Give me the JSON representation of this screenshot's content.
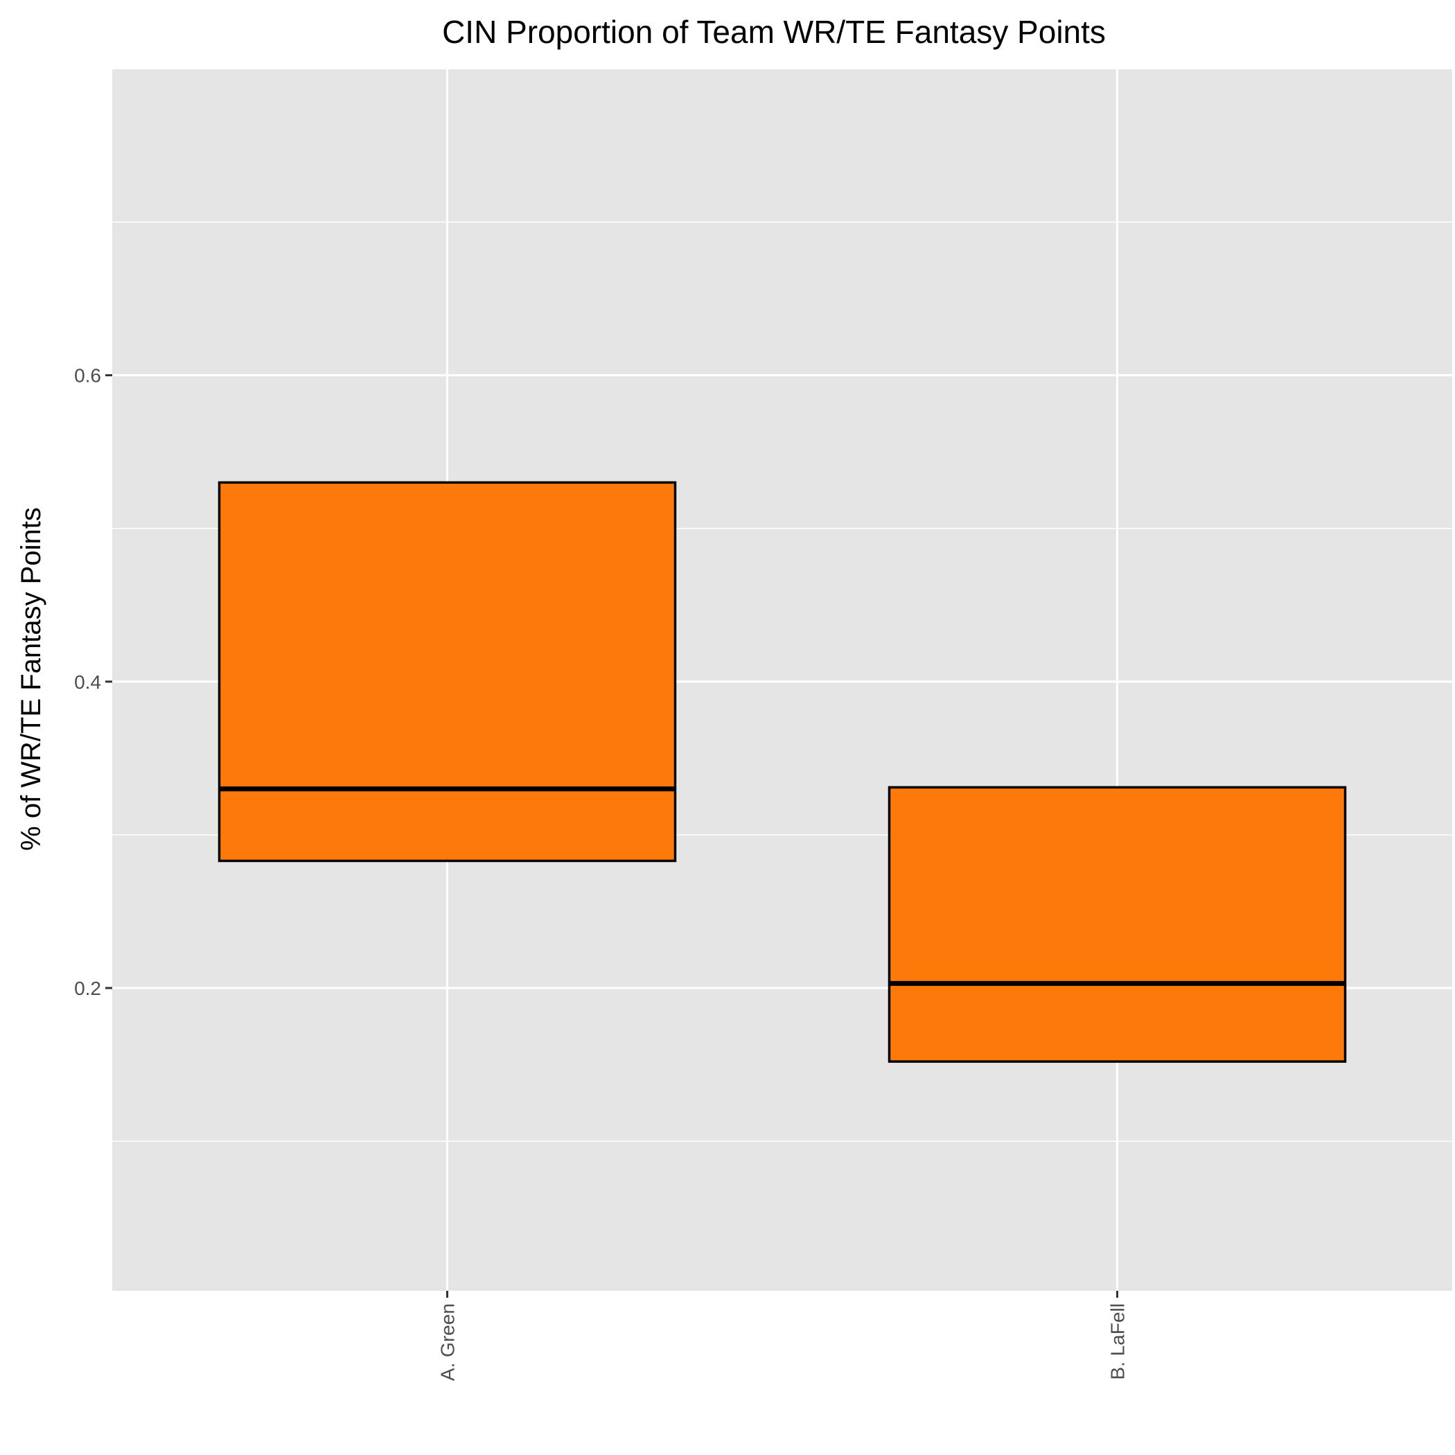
{
  "chart_data": {
    "type": "box",
    "title": "CIN Proportion of Team WR/TE Fantasy Points",
    "xlabel": "",
    "ylabel": "% of WR/TE Fantasy Points",
    "ylim": [
      0.0,
      0.8
    ],
    "yticks": [
      0.2,
      0.4,
      0.6
    ],
    "ytick_labels": [
      "0.2",
      "0.4",
      "0.6"
    ],
    "grid": true,
    "categories": [
      "A. Green",
      "B. LaFell"
    ],
    "boxes": [
      {
        "category": "A. Green",
        "q1": 0.283,
        "median": 0.33,
        "q3": 0.53
      },
      {
        "category": "B. LaFell",
        "q1": 0.152,
        "median": 0.203,
        "q3": 0.331
      }
    ],
    "colors": {
      "box_fill": "#fc790a",
      "box_outline": "#000000",
      "panel": "#e5e5e5",
      "grid": "#ffffff",
      "tick": "#333333"
    }
  }
}
